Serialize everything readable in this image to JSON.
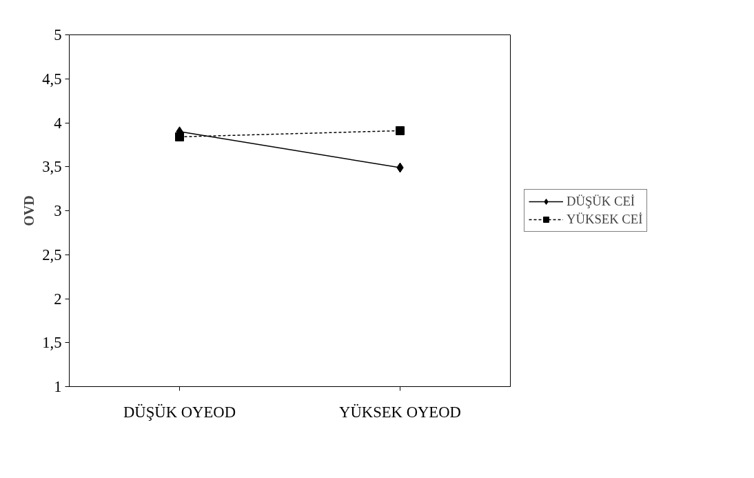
{
  "chart_data": {
    "type": "line",
    "ylabel": "OVD",
    "categories": [
      "DÜŞÜK OYEOD",
      "YÜKSEK OYEOD"
    ],
    "series": [
      {
        "name": "DÜŞÜK CEİ",
        "color": "#000000",
        "values": [
          3.9,
          3.49
        ],
        "marker": "diamond",
        "line_style": "solid"
      },
      {
        "name": "YÜKSEK CEİ",
        "color": "#000000",
        "values": [
          3.84,
          3.91
        ],
        "marker": "square",
        "line_style": "dashed"
      }
    ],
    "ylim": [
      1,
      5
    ],
    "yticks": [
      1,
      {
        "value": 1.5,
        "label": "1,5"
      },
      2,
      {
        "value": 2.5,
        "label": "2,5"
      },
      3,
      {
        "value": 3.5,
        "label": "3,5"
      },
      4,
      {
        "value": 4.5,
        "label": "4,5"
      },
      5
    ],
    "grid": false,
    "legend": "right"
  }
}
